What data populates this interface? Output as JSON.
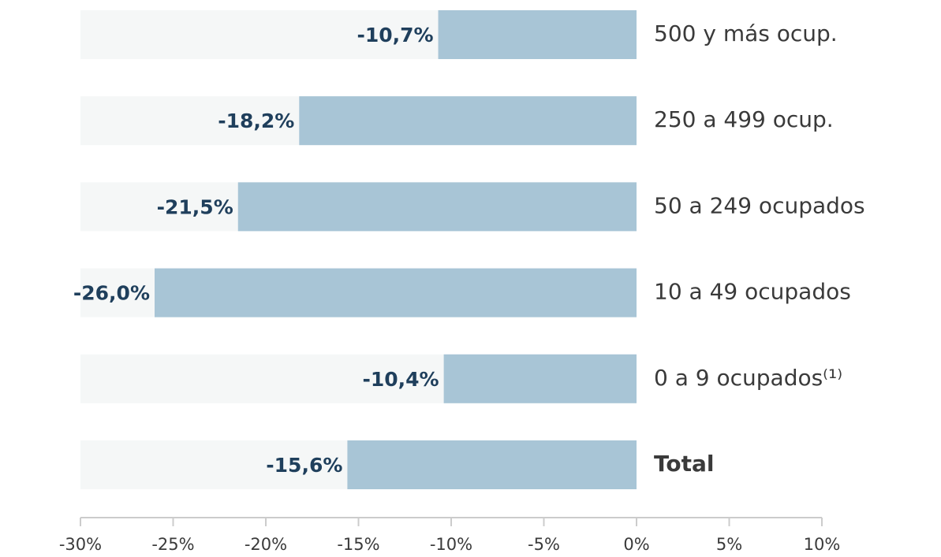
{
  "chart_data": {
    "type": "barh",
    "categories": [
      "500 y más ocup.",
      "250 a 499 ocup.",
      "50 a 249 ocupados",
      "10 a 49 ocupados",
      "0 a 9 ocupados⁽¹⁾",
      "Total"
    ],
    "values": [
      -10.7,
      -18.2,
      -21.5,
      -26.0,
      -10.4,
      -15.6
    ],
    "value_labels": [
      "-10,7%",
      "-18,2%",
      "-21,5%",
      "-26,0%",
      "-10,4%",
      "-15,6%"
    ],
    "color": "#a8c5d6",
    "xlim": [
      -30,
      10
    ],
    "xticks": [
      {
        "value": -30,
        "label": "-30%"
      },
      {
        "value": -25,
        "label": "-25%"
      },
      {
        "value": -20,
        "label": "-20%"
      },
      {
        "value": -15,
        "label": "-15%"
      },
      {
        "value": -10,
        "label": "-10%"
      },
      {
        "value": -5,
        "label": "-5%"
      },
      {
        "value": 0,
        "label": "0%"
      },
      {
        "value": 5,
        "label": "5%"
      },
      {
        "value": 10,
        "label": "10%"
      }
    ],
    "grid": false
  }
}
